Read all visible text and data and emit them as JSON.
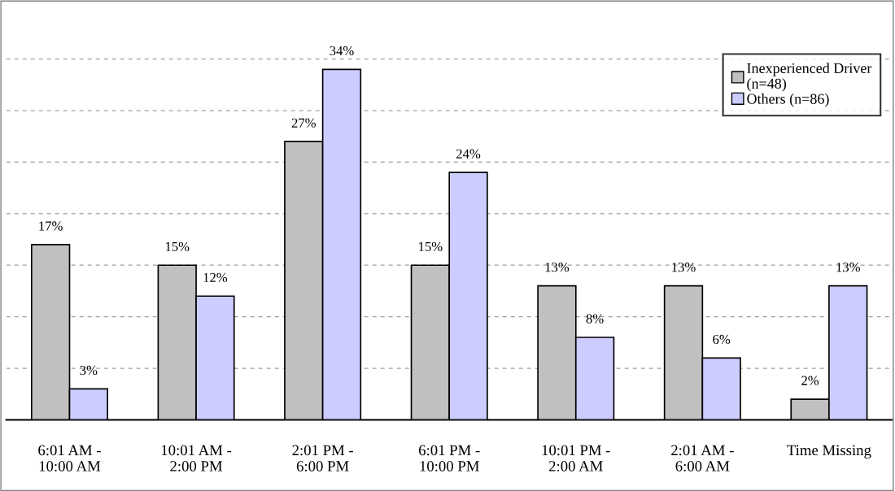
{
  "chart_data": {
    "type": "bar",
    "categories": [
      "6:01 AM -\n10:00 AM",
      "10:01 AM -\n2:00 PM",
      "2:01 PM -\n6:00 PM",
      "6:01 PM -\n10:00 PM",
      "10:01 PM -\n2:00 AM",
      "2:01 AM -\n6:00 AM",
      "Time Missing"
    ],
    "series": [
      {
        "name": "Inexperienced Driver\n(n=48)",
        "color": "#c0c0c0",
        "values": [
          17,
          15,
          27,
          15,
          13,
          13,
          2
        ],
        "value_labels": [
          "17%",
          "15%",
          "27%",
          "15%",
          "13%",
          "13%",
          "2%"
        ]
      },
      {
        "name": "Others (n=86)",
        "color": "#ccccff",
        "values": [
          3,
          12,
          34,
          24,
          8,
          6,
          13
        ],
        "value_labels": [
          "3%",
          "12%",
          "34%",
          "24%",
          "8%",
          "6%",
          "13%"
        ]
      }
    ],
    "grid": "y",
    "legend": "top right",
    "tick_labels": "x"
  }
}
